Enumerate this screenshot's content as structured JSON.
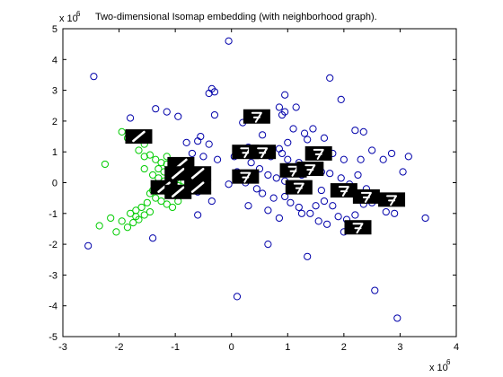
{
  "figure": {
    "title": "Two-dimensional Isomap embedding (with neighborhood graph).",
    "y_multiplier_base": "x 10",
    "y_multiplier_exp": "6",
    "x_multiplier_base": "x 10",
    "x_multiplier_exp": "6"
  },
  "chart_data": {
    "type": "scatter",
    "title": "Two-dimensional Isomap embedding (with neighborhood graph).",
    "xlabel": "",
    "ylabel": "",
    "xlim": [
      -3000000,
      4000000
    ],
    "ylim": [
      -5000000,
      5000000
    ],
    "x_ticks": [
      -3,
      -2,
      -1,
      0,
      1,
      2,
      3,
      4
    ],
    "y_ticks": [
      -5,
      -4,
      -3,
      -2,
      -1,
      0,
      1,
      2,
      3,
      4,
      5
    ],
    "x_tick_scale": 1000000,
    "y_tick_scale": 1000000,
    "grid": false,
    "legend": "none",
    "series": [
      {
        "marker": "circle-open",
        "color": "#00cc00",
        "points": [
          [
            -1.95,
            1.65
          ],
          [
            -2.25,
            0.6
          ],
          [
            -1.85,
            1.45
          ],
          [
            -1.55,
            1.25
          ],
          [
            -1.65,
            1.05
          ],
          [
            -1.55,
            0.85
          ],
          [
            -1.45,
            0.9
          ],
          [
            -1.35,
            0.75
          ],
          [
            -1.25,
            0.65
          ],
          [
            -1.15,
            0.6
          ],
          [
            -1.3,
            0.45
          ],
          [
            -1.2,
            0.35
          ],
          [
            -1.05,
            0.5
          ],
          [
            -0.95,
            0.4
          ],
          [
            -1.4,
            0.25
          ],
          [
            -1.3,
            0.15
          ],
          [
            -1.2,
            0.05
          ],
          [
            -1.1,
            0.2
          ],
          [
            -1.0,
            0.1
          ],
          [
            -0.9,
            0.25
          ],
          [
            -1.35,
            -0.1
          ],
          [
            -1.25,
            -0.2
          ],
          [
            -1.15,
            -0.3
          ],
          [
            -1.05,
            -0.35
          ],
          [
            -0.95,
            -0.1
          ],
          [
            -1.45,
            -0.35
          ],
          [
            -1.35,
            -0.5
          ],
          [
            -1.25,
            -0.6
          ],
          [
            -1.15,
            -0.7
          ],
          [
            -1.5,
            -0.65
          ],
          [
            -1.6,
            -0.8
          ],
          [
            -1.7,
            -0.9
          ],
          [
            -1.8,
            -1.0
          ],
          [
            -1.55,
            -1.05
          ],
          [
            -1.65,
            -1.2
          ],
          [
            -1.75,
            -1.3
          ],
          [
            -1.85,
            -1.45
          ],
          [
            -1.95,
            -1.25
          ],
          [
            -2.15,
            -1.15
          ],
          [
            -2.35,
            -1.4
          ],
          [
            -2.05,
            -1.6
          ],
          [
            -1.45,
            -0.95
          ],
          [
            -1.05,
            -0.8
          ],
          [
            -0.95,
            -0.6
          ],
          [
            -0.85,
            -0.4
          ],
          [
            -0.85,
            0.05
          ],
          [
            -1.15,
            0.85
          ],
          [
            -1.55,
            0.45
          ],
          [
            -1.4,
            -0.25
          ],
          [
            -1.7,
            -1.1
          ]
        ]
      },
      {
        "marker": "circle-open",
        "color": "#0000aa",
        "points": [
          [
            -0.05,
            4.6
          ],
          [
            -2.45,
            3.45
          ],
          [
            -0.35,
            3.05
          ],
          [
            -0.4,
            2.9
          ],
          [
            -0.3,
            2.95
          ],
          [
            -1.8,
            2.1
          ],
          [
            -1.35,
            2.4
          ],
          [
            -1.15,
            2.3
          ],
          [
            -0.95,
            2.15
          ],
          [
            -0.3,
            2.2
          ],
          [
            0.2,
            1.95
          ],
          [
            0.95,
            2.85
          ],
          [
            0.85,
            2.45
          ],
          [
            1.15,
            2.45
          ],
          [
            0.95,
            2.3
          ],
          [
            0.9,
            2.2
          ],
          [
            1.75,
            3.4
          ],
          [
            1.95,
            2.7
          ],
          [
            1.45,
            1.75
          ],
          [
            1.3,
            1.6
          ],
          [
            1.35,
            1.4
          ],
          [
            1.65,
            1.45
          ],
          [
            2.2,
            1.7
          ],
          [
            2.35,
            1.65
          ],
          [
            2.5,
            1.05
          ],
          [
            2.85,
            0.95
          ],
          [
            3.05,
            0.35
          ],
          [
            1.8,
            0.95
          ],
          [
            2.0,
            0.75
          ],
          [
            2.3,
            0.75
          ],
          [
            2.7,
            0.75
          ],
          [
            -0.55,
            1.5
          ],
          [
            -0.6,
            1.35
          ],
          [
            -0.8,
            1.3
          ],
          [
            -0.7,
            0.95
          ],
          [
            -0.4,
            1.25
          ],
          [
            -0.5,
            0.85
          ],
          [
            -0.25,
            0.75
          ],
          [
            0.05,
            0.85
          ],
          [
            0.35,
            0.65
          ],
          [
            0.5,
            0.45
          ],
          [
            0.65,
            0.25
          ],
          [
            0.8,
            0.15
          ],
          [
            0.95,
            0.05
          ],
          [
            1.1,
            -0.05
          ],
          [
            0.7,
            0.85
          ],
          [
            0.9,
            0.95
          ],
          [
            1.0,
            0.75
          ],
          [
            1.2,
            0.65
          ],
          [
            0.45,
            -0.2
          ],
          [
            0.55,
            -0.35
          ],
          [
            0.75,
            -0.5
          ],
          [
            0.95,
            -0.45
          ],
          [
            1.05,
            -0.65
          ],
          [
            1.2,
            -0.8
          ],
          [
            1.4,
            -1.0
          ],
          [
            1.5,
            -0.75
          ],
          [
            1.65,
            -0.6
          ],
          [
            1.8,
            -0.75
          ],
          [
            1.9,
            -1.1
          ],
          [
            2.05,
            -1.2
          ],
          [
            2.2,
            -1.05
          ],
          [
            2.35,
            -0.7
          ],
          [
            2.5,
            -0.65
          ],
          [
            2.75,
            -0.95
          ],
          [
            2.9,
            -1.0
          ],
          [
            1.75,
            0.3
          ],
          [
            1.95,
            0.15
          ],
          [
            2.1,
            -0.05
          ],
          [
            2.4,
            -0.2
          ],
          [
            1.6,
            -0.25
          ],
          [
            1.35,
            -0.15
          ],
          [
            1.25,
            0.25
          ],
          [
            1.55,
            0.55
          ],
          [
            3.15,
            0.85
          ],
          [
            3.45,
            -1.15
          ],
          [
            -2.55,
            -2.05
          ],
          [
            -1.4,
            -1.8
          ],
          [
            -0.6,
            -1.05
          ],
          [
            -0.35,
            -0.6
          ],
          [
            -0.6,
            -0.3
          ],
          [
            0.25,
            0.0
          ],
          [
            0.1,
            0.35
          ],
          [
            0.3,
            1.15
          ],
          [
            0.55,
            1.55
          ],
          [
            0.85,
            1.1
          ],
          [
            1.0,
            1.3
          ],
          [
            0.65,
            -2.0
          ],
          [
            1.35,
            -2.4
          ],
          [
            0.1,
            -3.7
          ],
          [
            2.55,
            -3.5
          ],
          [
            2.95,
            -4.4
          ],
          [
            2.0,
            -1.6
          ],
          [
            2.15,
            -1.5
          ],
          [
            1.55,
            -1.25
          ],
          [
            0.3,
            -0.75
          ],
          [
            0.65,
            -0.9
          ],
          [
            0.85,
            -1.15
          ],
          [
            1.25,
            -1.0
          ],
          [
            1.7,
            -1.35
          ],
          [
            -0.05,
            -0.05
          ],
          [
            1.6,
            0.35
          ],
          [
            2.25,
            0.25
          ],
          [
            1.1,
            1.75
          ]
        ]
      }
    ],
    "image_annotations": [
      {
        "x": -1.65,
        "y": 1.5,
        "label": "digit 1"
      },
      {
        "x": -0.9,
        "y": 0.6,
        "label": "digit 1"
      },
      {
        "x": -0.95,
        "y": 0.3,
        "label": "digit 1"
      },
      {
        "x": -0.6,
        "y": 0.3,
        "label": "digit 1"
      },
      {
        "x": -1.2,
        "y": -0.15,
        "label": "digit 1"
      },
      {
        "x": -0.95,
        "y": -0.3,
        "label": "digit 1"
      },
      {
        "x": -0.6,
        "y": -0.15,
        "label": "digit 1"
      },
      {
        "x": 0.45,
        "y": 2.15,
        "label": "digit 7"
      },
      {
        "x": 0.25,
        "y": 1.0,
        "label": "digit 7"
      },
      {
        "x": 0.55,
        "y": 1.0,
        "label": "digit 7"
      },
      {
        "x": 0.25,
        "y": 0.2,
        "label": "digit 7"
      },
      {
        "x": 1.55,
        "y": 0.95,
        "label": "digit 7"
      },
      {
        "x": 1.1,
        "y": 0.4,
        "label": "digit 7"
      },
      {
        "x": 1.4,
        "y": 0.45,
        "label": "digit 7"
      },
      {
        "x": 1.2,
        "y": -0.15,
        "label": "digit 7"
      },
      {
        "x": 2.0,
        "y": -0.25,
        "label": "digit 7"
      },
      {
        "x": 2.4,
        "y": -0.45,
        "label": "digit 7"
      },
      {
        "x": 2.85,
        "y": -0.55,
        "label": "digit 7"
      },
      {
        "x": 2.25,
        "y": -1.45,
        "label": "digit 7"
      }
    ]
  }
}
